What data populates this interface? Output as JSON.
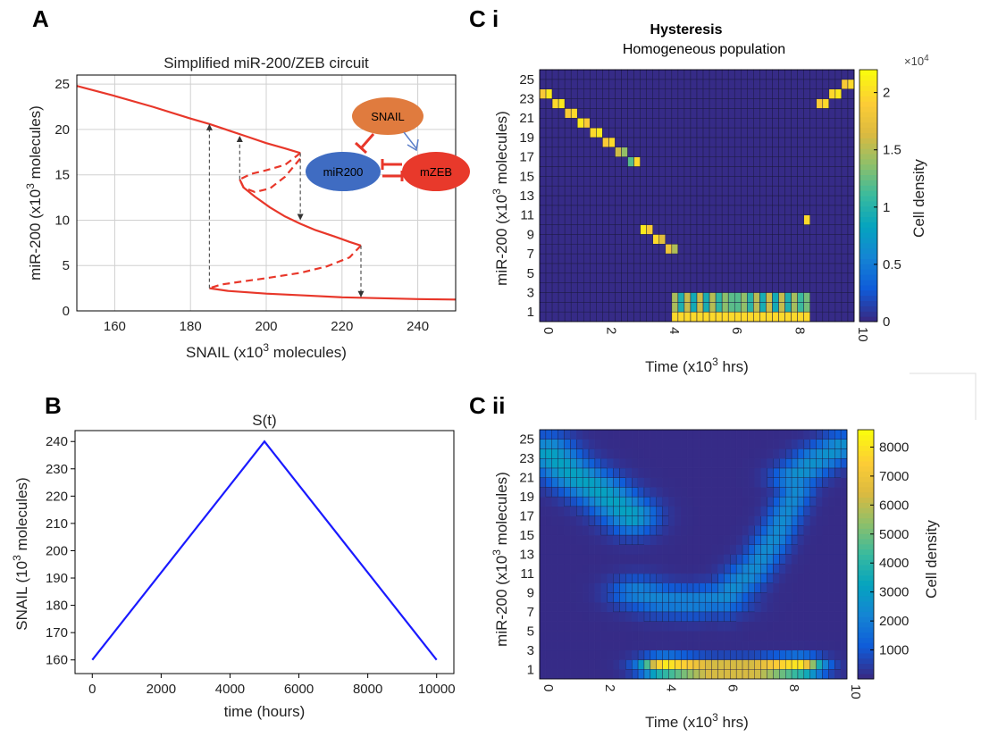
{
  "panels": {
    "a": "A",
    "b": "B",
    "ci": "C i",
    "cii": "C ii"
  },
  "chart_data": [
    {
      "id": "A",
      "type": "line",
      "title": "Simplified miR-200/ZEB circuit",
      "xlabel_pre": "SNAIL (x10",
      "xlabel_sup": "3",
      "xlabel_post": " molecules)",
      "ylabel_pre": "miR-200 (x10",
      "ylabel_sup": "3",
      "ylabel_post": " molecules)",
      "xlim": [
        150,
        250
      ],
      "ylim": [
        0,
        26
      ],
      "xticks": [
        160,
        180,
        200,
        220,
        240
      ],
      "yticks": [
        0,
        5,
        10,
        15,
        20,
        25
      ],
      "grid": true,
      "color": "#e8372a",
      "series": [
        {
          "style": "solid",
          "x": [
            150,
            160,
            170,
            180,
            185,
            190,
            195,
            200,
            205,
            209
          ],
          "y": [
            24.8,
            23.7,
            22.5,
            21.2,
            20.6,
            19.9,
            19.2,
            18.5,
            17.9,
            17.4
          ]
        },
        {
          "style": "dashed",
          "x": [
            209,
            205,
            200,
            196,
            193,
            194,
            197,
            201,
            205,
            209
          ],
          "y": [
            17.4,
            16.1,
            15.5,
            15.1,
            14.5,
            13.6,
            13.1,
            13.5,
            14.8,
            16.8
          ]
        },
        {
          "style": "solid",
          "x": [
            193,
            194,
            197,
            201,
            205,
            209,
            213,
            218,
            222,
            225
          ],
          "y": [
            14.5,
            13.6,
            12.6,
            11.4,
            10.4,
            9.6,
            8.9,
            8.2,
            7.6,
            7.2
          ]
        },
        {
          "style": "dashed",
          "x": [
            225,
            222,
            216,
            209,
            200,
            193,
            188,
            185
          ],
          "y": [
            7.2,
            5.9,
            4.9,
            4.2,
            3.6,
            3.2,
            2.9,
            2.5
          ]
        },
        {
          "style": "solid",
          "x": [
            185,
            190,
            200,
            210,
            220,
            230,
            240,
            250
          ],
          "y": [
            2.5,
            2.2,
            1.9,
            1.7,
            1.5,
            1.4,
            1.3,
            1.25
          ]
        }
      ],
      "arrows": [
        {
          "x": 185,
          "from": 2.5,
          "to": 20.6
        },
        {
          "x": 193,
          "from": 14.5,
          "to": 19.3
        },
        {
          "x": 209,
          "from": 17.4,
          "to": 10.0
        },
        {
          "x": 225,
          "from": 7.2,
          "to": 1.5
        }
      ],
      "inset": {
        "nodes": [
          {
            "label": "SNAIL",
            "color": "#e07b3e"
          },
          {
            "label": "miR200",
            "color": "#3f6cc2"
          },
          {
            "label": "mZEB",
            "color": "#e8392b"
          }
        ]
      }
    },
    {
      "id": "B",
      "type": "line",
      "title": "S(t)",
      "xlabel": "time (hours)",
      "ylabel_pre": "SNAIL (10",
      "ylabel_sup": "3",
      "ylabel_post": " molecules)",
      "xlim": [
        -500,
        10500
      ],
      "ylim": [
        155,
        244
      ],
      "xticks": [
        0,
        2000,
        4000,
        6000,
        8000,
        10000
      ],
      "yticks": [
        160,
        170,
        180,
        190,
        200,
        210,
        220,
        230,
        240
      ],
      "color": "#1a1aff",
      "x": [
        0,
        5000,
        10000
      ],
      "y": [
        160,
        240,
        160
      ]
    },
    {
      "id": "Ci",
      "type": "heatmap",
      "title": "Hysteresis",
      "subtitle": "Homogeneous population",
      "xlabel_pre": "Time (x10",
      "xlabel_sup": "3",
      "xlabel_post": " hrs)",
      "ylabel_pre": "miR-200 (x10",
      "ylabel_sup": "3",
      "ylabel_post": " molecules)",
      "xticks": [
        0,
        2,
        4,
        6,
        8,
        10
      ],
      "yticks": [
        1,
        3,
        5,
        7,
        9,
        11,
        13,
        15,
        17,
        19,
        21,
        23,
        25
      ],
      "colorbar": {
        "label": "Cell density",
        "ticks": [
          "0",
          "0.5",
          "1",
          "1.5",
          "2"
        ],
        "values": [
          0,
          5000,
          10000,
          15000,
          20000
        ],
        "max": 22000,
        "exponent_base": "×10",
        "exponent_power": "4"
      },
      "cells": [
        [
          0.1,
          23.5,
          19000
        ],
        [
          0.3,
          23.0,
          21000
        ],
        [
          0.5,
          22.5,
          20000
        ],
        [
          0.7,
          22.0,
          21000
        ],
        [
          0.9,
          21.5,
          19000
        ],
        [
          1.1,
          21.0,
          20000
        ],
        [
          1.3,
          20.5,
          21000
        ],
        [
          1.5,
          20.0,
          19000
        ],
        [
          1.7,
          19.5,
          20000
        ],
        [
          1.9,
          19.0,
          21000
        ],
        [
          2.1,
          18.5,
          19000
        ],
        [
          2.3,
          18.0,
          20000
        ],
        [
          2.5,
          17.5,
          16000
        ],
        [
          2.7,
          17.0,
          14000
        ],
        [
          2.9,
          16.5,
          12000
        ],
        [
          3.1,
          16.0,
          20000
        ],
        [
          3.3,
          9.5,
          21000
        ],
        [
          3.5,
          9.0,
          19000
        ],
        [
          3.7,
          8.5,
          20000
        ],
        [
          3.9,
          8.0,
          17000
        ],
        [
          4.1,
          7.5,
          18000
        ],
        [
          4.3,
          7.0,
          15000
        ],
        [
          8.5,
          10.5,
          18000
        ],
        [
          8.5,
          10.0,
          20000
        ],
        [
          8.9,
          22.0,
          19000
        ],
        [
          9.1,
          22.5,
          20000
        ],
        [
          9.3,
          23.0,
          20000
        ],
        [
          9.5,
          23.5,
          21000
        ],
        [
          9.7,
          24.0,
          19000
        ],
        [
          9.9,
          24.5,
          20000
        ]
      ],
      "band": {
        "x_from": 4.3,
        "x_to": 8.5,
        "y_from": 0.5,
        "y_to": 2.5,
        "value": 20000
      }
    },
    {
      "id": "Cii",
      "type": "heatmap",
      "xlabel_pre": "Time (x10",
      "xlabel_sup": "3",
      "xlabel_post": " hrs)",
      "ylabel_pre": "miR-200 (x10",
      "ylabel_sup": "3",
      "ylabel_post": " molecules)",
      "xticks": [
        0,
        2,
        4,
        6,
        8,
        10
      ],
      "yticks": [
        1,
        3,
        5,
        7,
        9,
        11,
        13,
        15,
        17,
        19,
        21,
        23,
        25
      ],
      "colorbar": {
        "label": "Cell density",
        "ticks": [
          "1000",
          "2000",
          "3000",
          "4000",
          "5000",
          "6000",
          "7000",
          "8000"
        ],
        "values": [
          1000,
          2000,
          3000,
          4000,
          5000,
          6000,
          7000,
          8000
        ],
        "min": 0,
        "max": 8600
      },
      "blobs": [
        {
          "path": [
            [
              0.3,
              23.5
            ],
            [
              1.0,
              21.5
            ],
            [
              2.0,
              19.5
            ],
            [
              3.0,
              17.0
            ]
          ],
          "sx": 0.55,
          "sy": 1.3,
          "peak": 3200
        },
        {
          "path": [
            [
              3.2,
              9.0
            ],
            [
              4.0,
              8.2
            ],
            [
              5.0,
              8.0
            ],
            [
              6.0,
              8.5
            ]
          ],
          "sx": 0.6,
          "sy": 1.1,
          "peak": 2200
        },
        {
          "path": [
            [
              6.0,
              8.5
            ],
            [
              7.0,
              11.5
            ],
            [
              7.7,
              15.0
            ],
            [
              8.4,
              20.0
            ]
          ],
          "sx": 0.35,
          "sy": 1.3,
          "peak": 2400
        },
        {
          "path": [
            [
              8.3,
              21.0
            ],
            [
              9.0,
              22.8
            ],
            [
              9.8,
              24.2
            ]
          ],
          "sx": 0.5,
          "sy": 1.0,
          "peak": 2600
        },
        {
          "path": [
            [
              4.1,
              1.3
            ],
            [
              5.5,
              1.0
            ],
            [
              7.0,
              1.0
            ],
            [
              8.4,
              1.3
            ]
          ],
          "sx": 0.55,
          "sy": 0.65,
          "peak": 8600
        }
      ]
    }
  ]
}
